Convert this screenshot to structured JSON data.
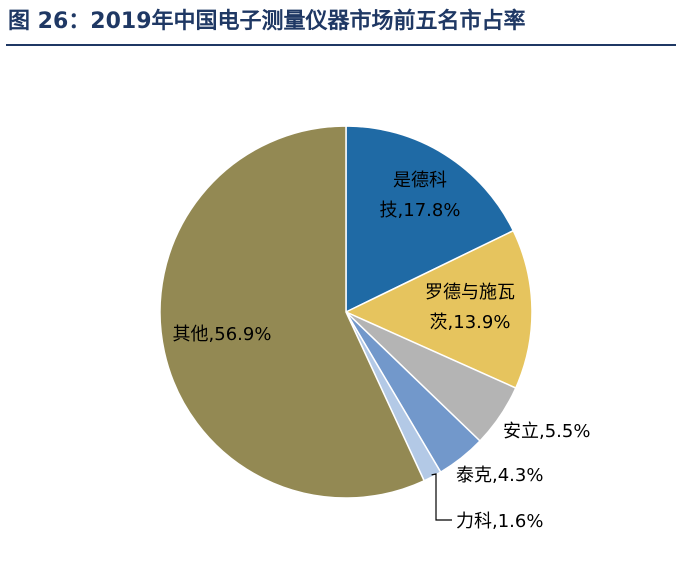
{
  "figure": {
    "title": "图 26：2019年中国电子测量仪器市场前五名市占率"
  },
  "chart_data": {
    "type": "pie",
    "title": "",
    "slices": [
      {
        "label": "是德科技",
        "value": 17.8,
        "display": "是德科\n技,17.8%",
        "color": "#1f6aa5"
      },
      {
        "label": "罗德与施瓦茨",
        "value": 13.9,
        "display": "罗德与施瓦\n茨,13.9%",
        "color": "#e6c45e"
      },
      {
        "label": "安立",
        "value": 5.5,
        "display": "安立,5.5%",
        "color": "#b4b4b4"
      },
      {
        "label": "泰克",
        "value": 4.3,
        "display": "泰克,4.3%",
        "color": "#7298cb"
      },
      {
        "label": "力科",
        "value": 1.6,
        "display": "力科,1.6%",
        "color": "#b3c9e6"
      },
      {
        "label": "其他",
        "value": 56.9,
        "display": "其他,56.9%",
        "color": "#938953"
      }
    ],
    "start": "12 o'clock",
    "direction": "clockwise",
    "legend": "none"
  }
}
